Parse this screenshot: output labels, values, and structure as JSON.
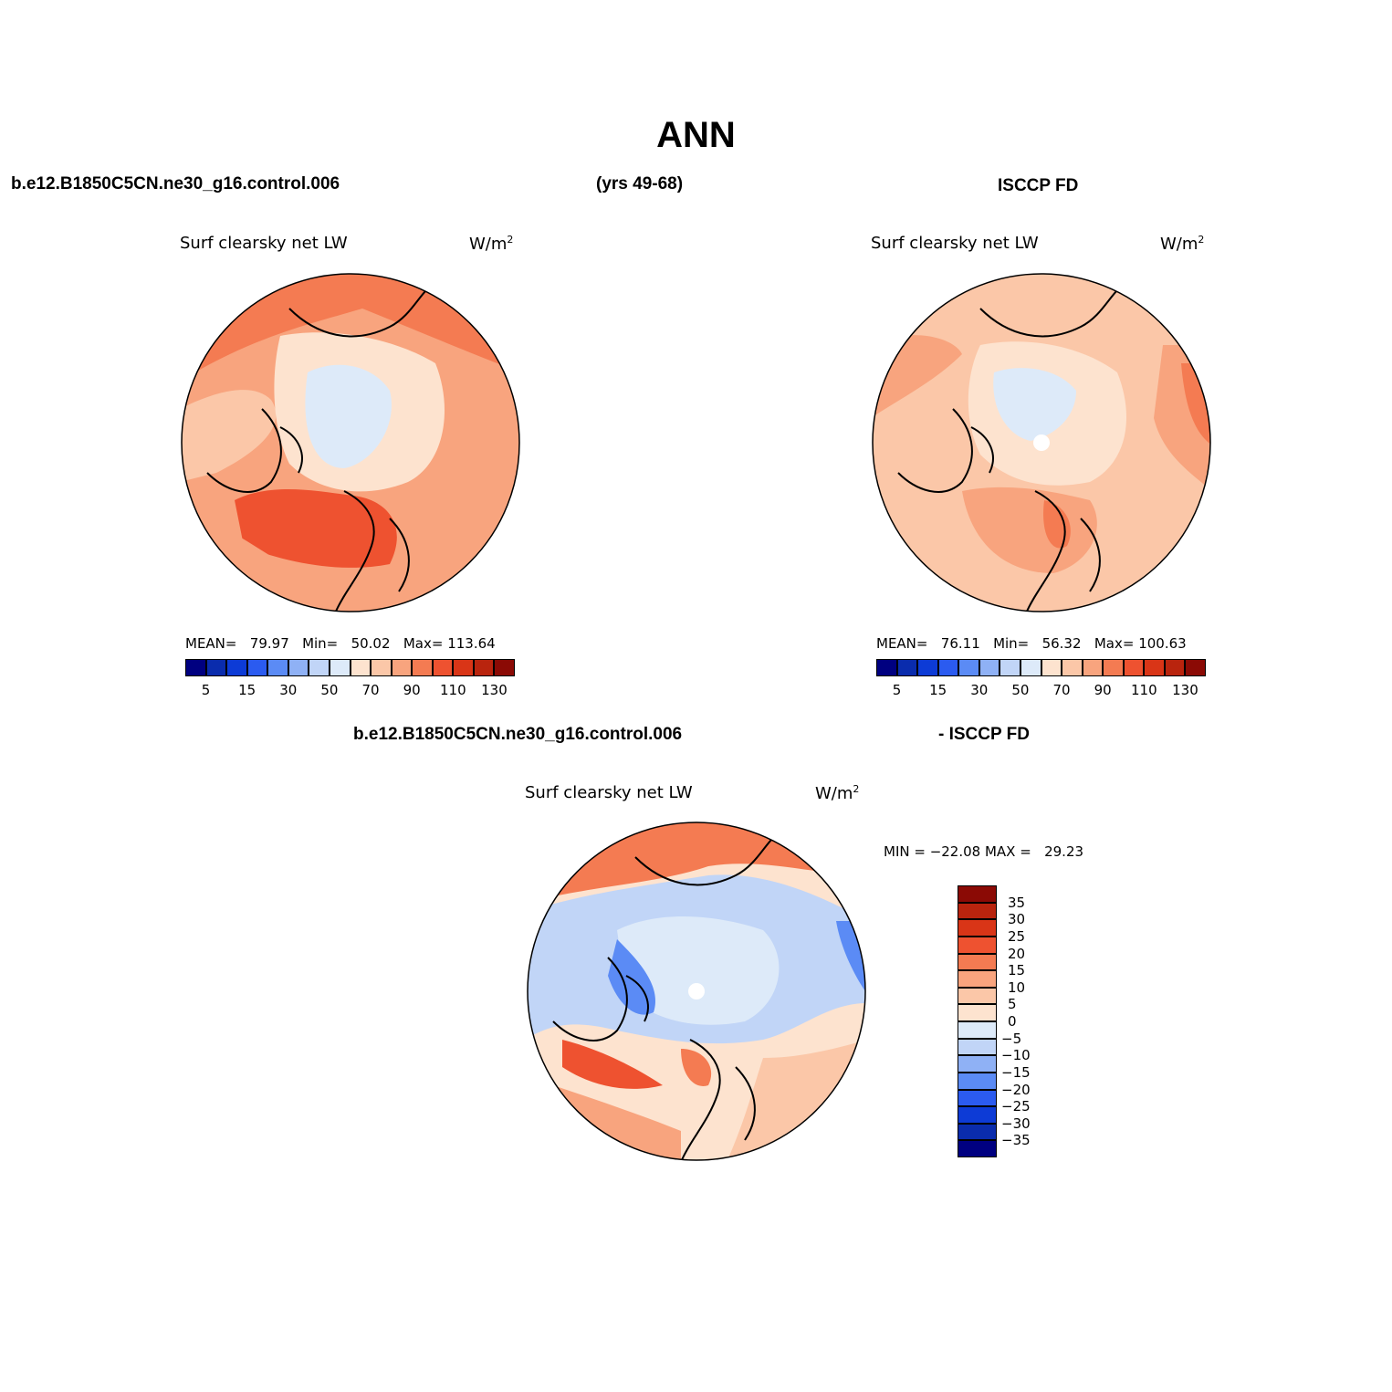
{
  "title": "ANN",
  "header": {
    "case_name": "b.e12.B1850C5CN.ne30_g16.control.006",
    "years": "(yrs 49-68)",
    "obs_name": "ISCCP FD"
  },
  "diff_header": {
    "case_name": "b.e12.B1850C5CN.ne30_g16.control.006",
    "obs_name": "- ISCCP FD"
  },
  "panels": {
    "model": {
      "variable": "Surf clearsky net LW",
      "units_base": "W/m",
      "units_exp": "2",
      "stats": {
        "mean_label": "MEAN=",
        "mean": "79.97",
        "min_label": "Min=",
        "min": "50.02",
        "max_label": "Max=",
        "max": "113.64"
      }
    },
    "obs": {
      "variable": "Surf clearsky net LW",
      "units_base": "W/m",
      "units_exp": "2",
      "stats": {
        "mean_label": "MEAN=",
        "mean": "76.11",
        "min_label": "Min=",
        "min": "56.32",
        "max_label": "Max=",
        "max": "100.63"
      }
    },
    "diff": {
      "variable": "Surf clearsky net LW",
      "units_base": "W/m",
      "units_exp": "2",
      "minmax": "MIN = −22.08 MAX =   29.23"
    }
  },
  "colorbar_abs": {
    "colors": [
      "#000080",
      "#0a2cad",
      "#0d3bd6",
      "#2b5bf0",
      "#5b8bf5",
      "#8fb1f5",
      "#c1d5f7",
      "#ddeaf9",
      "#fde3cf",
      "#fbc7a8",
      "#f8a47e",
      "#f47b52",
      "#ee5230",
      "#d93517",
      "#b9240e",
      "#8b0a05"
    ],
    "tick_labels": [
      "5",
      "15",
      "30",
      "50",
      "70",
      "90",
      "110",
      "130"
    ]
  },
  "colorbar_diff": {
    "colors": [
      "#8b0a05",
      "#b9240e",
      "#d93517",
      "#ee5230",
      "#f47b52",
      "#f8a47e",
      "#fbc7a8",
      "#fde3cf",
      "#ddeaf9",
      "#c1d5f7",
      "#8fb1f5",
      "#5b8bf5",
      "#2b5bf0",
      "#0d3bd6",
      "#0a2cad",
      "#000080"
    ],
    "tick_labels": [
      "35",
      "30",
      "25",
      "20",
      "15",
      "10",
      "5",
      "0",
      "−5",
      "−10",
      "−15",
      "−20",
      "−25",
      "−30",
      "−35"
    ]
  }
}
